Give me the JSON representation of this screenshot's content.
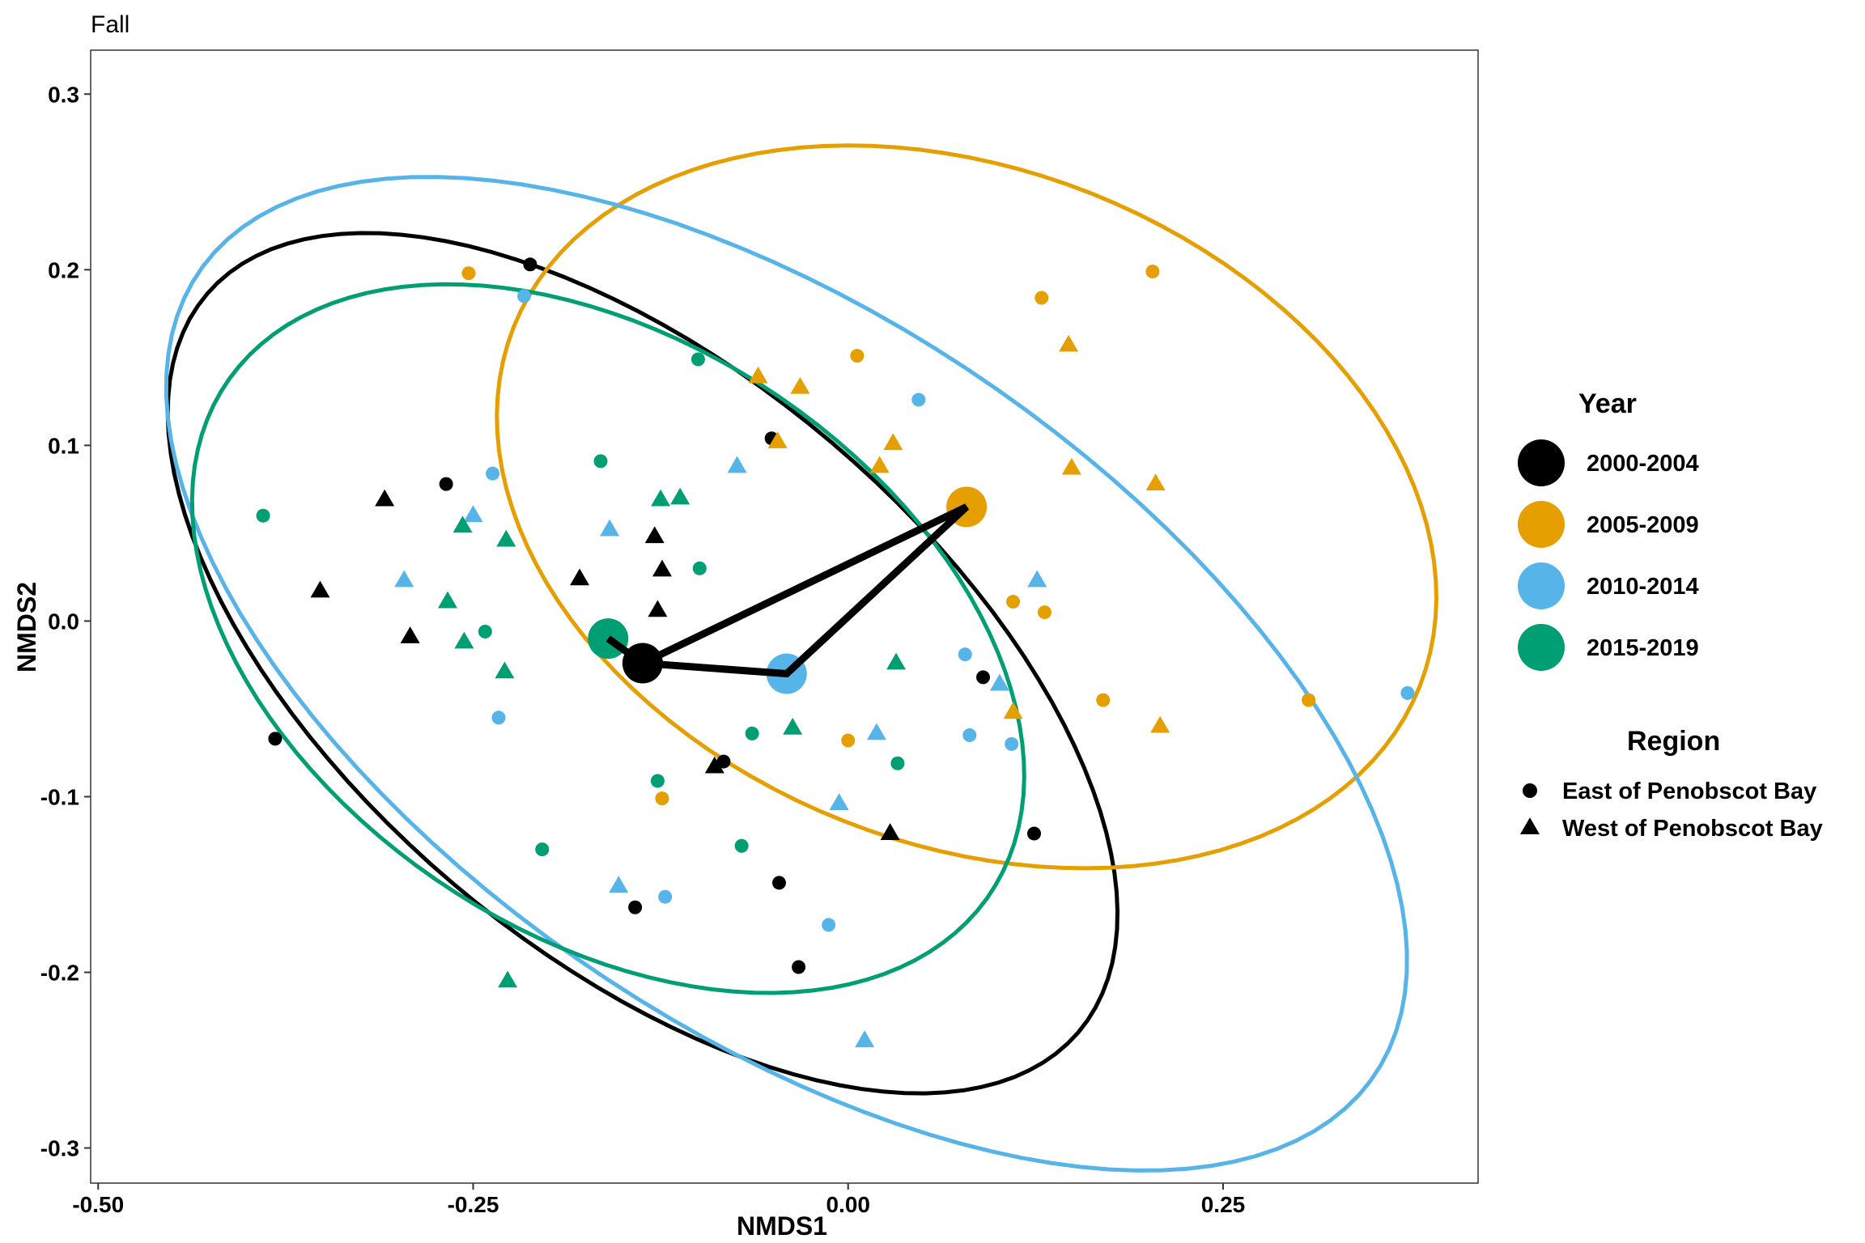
{
  "chart_data": {
    "type": "scatter",
    "title": "Fall",
    "xlabel": "NMDS1",
    "ylabel": "NMDS2",
    "xlim": [
      -0.505,
      0.42
    ],
    "ylim": [
      -0.32,
      0.325
    ],
    "xticks": [
      -0.5,
      -0.25,
      0.0,
      0.25
    ],
    "xtick_labels": [
      "-0.50",
      "-0.25",
      "0.00",
      "0.25"
    ],
    "yticks": [
      0.3,
      0.2,
      0.1,
      0.0,
      -0.1,
      -0.2,
      -0.3
    ],
    "ytick_labels": [
      "0.3",
      "0.2",
      "0.1",
      "0.0",
      "-0.1",
      "-0.2",
      "-0.3"
    ],
    "grid": false,
    "legend_position": "right",
    "year_legend": {
      "title": "Year",
      "items": [
        {
          "label": "2000-2004",
          "color": "#000000"
        },
        {
          "label": "2005-2009",
          "color": "#E69F00"
        },
        {
          "label": "2010-2014",
          "color": "#56B4E9"
        },
        {
          "label": "2015-2019",
          "color": "#009E73"
        }
      ]
    },
    "region_legend": {
      "title": "Region",
      "items": [
        {
          "label": "East of Penobscot Bay",
          "shape": "circle"
        },
        {
          "label": "West of Penobscot Bay",
          "shape": "triangle"
        }
      ]
    },
    "centroids": [
      {
        "group": "2000-2004",
        "x": -0.137,
        "y": -0.024
      },
      {
        "group": "2005-2009",
        "x": 0.079,
        "y": 0.065
      },
      {
        "group": "2010-2014",
        "x": -0.041,
        "y": -0.03
      },
      {
        "group": "2015-2019",
        "x": -0.16,
        "y": -0.01
      }
    ],
    "centroid_path": [
      {
        "x": -0.16,
        "y": -0.01
      },
      {
        "x": -0.137,
        "y": -0.024
      },
      {
        "x": -0.041,
        "y": -0.03
      },
      {
        "x": 0.079,
        "y": 0.065
      },
      {
        "x": -0.137,
        "y": -0.024
      }
    ],
    "ellipses": [
      {
        "group": "2000-2004",
        "cx": -0.137,
        "cy": -0.024,
        "a": 0.36,
        "b": 0.175,
        "angle_deg": -33
      },
      {
        "group": "2005-2009",
        "cx": 0.079,
        "cy": 0.065,
        "a": 0.32,
        "b": 0.195,
        "angle_deg": -15
      },
      {
        "group": "2010-2014",
        "cx": -0.041,
        "cy": -0.03,
        "a": 0.455,
        "b": 0.21,
        "angle_deg": -28
      },
      {
        "group": "2015-2019",
        "cx": -0.16,
        "cy": -0.01,
        "a": 0.295,
        "b": 0.175,
        "angle_deg": -25
      }
    ],
    "points": [
      {
        "group": "2000-2004",
        "region": "East",
        "x": -0.212,
        "y": 0.203
      },
      {
        "group": "2000-2004",
        "region": "East",
        "x": -0.268,
        "y": 0.078
      },
      {
        "group": "2000-2004",
        "region": "East",
        "x": -0.051,
        "y": 0.104
      },
      {
        "group": "2000-2004",
        "region": "East",
        "x": -0.382,
        "y": -0.067
      },
      {
        "group": "2000-2004",
        "region": "East",
        "x": -0.083,
        "y": -0.08
      },
      {
        "group": "2000-2004",
        "region": "East",
        "x": 0.09,
        "y": -0.032
      },
      {
        "group": "2000-2004",
        "region": "East",
        "x": 0.124,
        "y": -0.121
      },
      {
        "group": "2000-2004",
        "region": "East",
        "x": -0.046,
        "y": -0.149
      },
      {
        "group": "2000-2004",
        "region": "East",
        "x": -0.142,
        "y": -0.163
      },
      {
        "group": "2000-2004",
        "region": "East",
        "x": -0.033,
        "y": -0.197
      },
      {
        "group": "2000-2004",
        "region": "West",
        "x": -0.309,
        "y": 0.069
      },
      {
        "group": "2000-2004",
        "region": "West",
        "x": -0.352,
        "y": 0.017
      },
      {
        "group": "2000-2004",
        "region": "West",
        "x": -0.292,
        "y": -0.009
      },
      {
        "group": "2000-2004",
        "region": "West",
        "x": -0.179,
        "y": 0.024
      },
      {
        "group": "2000-2004",
        "region": "West",
        "x": -0.129,
        "y": 0.048
      },
      {
        "group": "2000-2004",
        "region": "West",
        "x": -0.124,
        "y": 0.029
      },
      {
        "group": "2000-2004",
        "region": "West",
        "x": -0.127,
        "y": 0.006
      },
      {
        "group": "2000-2004",
        "region": "West",
        "x": -0.089,
        "y": -0.083
      },
      {
        "group": "2000-2004",
        "region": "West",
        "x": 0.028,
        "y": -0.121
      },
      {
        "group": "2005-2009",
        "region": "East",
        "x": -0.253,
        "y": 0.198
      },
      {
        "group": "2005-2009",
        "region": "East",
        "x": 0.006,
        "y": 0.151
      },
      {
        "group": "2005-2009",
        "region": "East",
        "x": 0.129,
        "y": 0.184
      },
      {
        "group": "2005-2009",
        "region": "East",
        "x": 0.203,
        "y": 0.199
      },
      {
        "group": "2005-2009",
        "region": "East",
        "x": 0.11,
        "y": 0.011
      },
      {
        "group": "2005-2009",
        "region": "East",
        "x": 0.131,
        "y": 0.005
      },
      {
        "group": "2005-2009",
        "region": "East",
        "x": 0.17,
        "y": -0.045
      },
      {
        "group": "2005-2009",
        "region": "East",
        "x": 0.307,
        "y": -0.045
      },
      {
        "group": "2005-2009",
        "region": "East",
        "x": 0.0,
        "y": -0.068
      },
      {
        "group": "2005-2009",
        "region": "East",
        "x": -0.124,
        "y": -0.101
      },
      {
        "group": "2005-2009",
        "region": "West",
        "x": -0.06,
        "y": 0.139
      },
      {
        "group": "2005-2009",
        "region": "West",
        "x": -0.032,
        "y": 0.133
      },
      {
        "group": "2005-2009",
        "region": "West",
        "x": -0.047,
        "y": 0.102
      },
      {
        "group": "2005-2009",
        "region": "West",
        "x": 0.03,
        "y": 0.101
      },
      {
        "group": "2005-2009",
        "region": "West",
        "x": 0.021,
        "y": 0.088
      },
      {
        "group": "2005-2009",
        "region": "West",
        "x": 0.147,
        "y": 0.157
      },
      {
        "group": "2005-2009",
        "region": "West",
        "x": 0.149,
        "y": 0.087
      },
      {
        "group": "2005-2009",
        "region": "West",
        "x": 0.205,
        "y": 0.078
      },
      {
        "group": "2005-2009",
        "region": "West",
        "x": 0.11,
        "y": -0.052
      },
      {
        "group": "2005-2009",
        "region": "West",
        "x": 0.208,
        "y": -0.06
      },
      {
        "group": "2010-2014",
        "region": "East",
        "x": -0.216,
        "y": 0.185
      },
      {
        "group": "2010-2014",
        "region": "East",
        "x": 0.047,
        "y": 0.126
      },
      {
        "group": "2010-2014",
        "region": "East",
        "x": -0.237,
        "y": 0.084
      },
      {
        "group": "2010-2014",
        "region": "East",
        "x": 0.078,
        "y": -0.019
      },
      {
        "group": "2010-2014",
        "region": "East",
        "x": 0.081,
        "y": -0.065
      },
      {
        "group": "2010-2014",
        "region": "East",
        "x": 0.109,
        "y": -0.07
      },
      {
        "group": "2010-2014",
        "region": "East",
        "x": -0.233,
        "y": -0.055
      },
      {
        "group": "2010-2014",
        "region": "East",
        "x": -0.122,
        "y": -0.157
      },
      {
        "group": "2010-2014",
        "region": "East",
        "x": -0.013,
        "y": -0.173
      },
      {
        "group": "2010-2014",
        "region": "East",
        "x": 0.373,
        "y": -0.041
      },
      {
        "group": "2010-2014",
        "region": "West",
        "x": -0.074,
        "y": 0.088
      },
      {
        "group": "2010-2014",
        "region": "West",
        "x": -0.25,
        "y": 0.06
      },
      {
        "group": "2010-2014",
        "region": "West",
        "x": -0.159,
        "y": 0.052
      },
      {
        "group": "2010-2014",
        "region": "West",
        "x": -0.296,
        "y": 0.023
      },
      {
        "group": "2010-2014",
        "region": "West",
        "x": 0.126,
        "y": 0.023
      },
      {
        "group": "2010-2014",
        "region": "West",
        "x": 0.101,
        "y": -0.036
      },
      {
        "group": "2010-2014",
        "region": "West",
        "x": 0.019,
        "y": -0.064
      },
      {
        "group": "2010-2014",
        "region": "West",
        "x": -0.006,
        "y": -0.104
      },
      {
        "group": "2010-2014",
        "region": "West",
        "x": -0.153,
        "y": -0.151
      },
      {
        "group": "2010-2014",
        "region": "West",
        "x": 0.011,
        "y": -0.239
      },
      {
        "group": "2015-2019",
        "region": "East",
        "x": -0.39,
        "y": 0.06
      },
      {
        "group": "2015-2019",
        "region": "East",
        "x": -0.1,
        "y": 0.149
      },
      {
        "group": "2015-2019",
        "region": "East",
        "x": -0.165,
        "y": 0.091
      },
      {
        "group": "2015-2019",
        "region": "East",
        "x": -0.099,
        "y": 0.03
      },
      {
        "group": "2015-2019",
        "region": "East",
        "x": -0.242,
        "y": -0.006
      },
      {
        "group": "2015-2019",
        "region": "East",
        "x": -0.064,
        "y": -0.064
      },
      {
        "group": "2015-2019",
        "region": "East",
        "x": 0.033,
        "y": -0.081
      },
      {
        "group": "2015-2019",
        "region": "East",
        "x": -0.127,
        "y": -0.091
      },
      {
        "group": "2015-2019",
        "region": "East",
        "x": -0.071,
        "y": -0.128
      },
      {
        "group": "2015-2019",
        "region": "East",
        "x": -0.204,
        "y": -0.13
      },
      {
        "group": "2015-2019",
        "region": "West",
        "x": -0.125,
        "y": 0.069
      },
      {
        "group": "2015-2019",
        "region": "West",
        "x": -0.112,
        "y": 0.07
      },
      {
        "group": "2015-2019",
        "region": "West",
        "x": -0.257,
        "y": 0.054
      },
      {
        "group": "2015-2019",
        "region": "West",
        "x": -0.228,
        "y": 0.046
      },
      {
        "group": "2015-2019",
        "region": "West",
        "x": -0.267,
        "y": 0.011
      },
      {
        "group": "2015-2019",
        "region": "West",
        "x": -0.256,
        "y": -0.012
      },
      {
        "group": "2015-2019",
        "region": "West",
        "x": -0.229,
        "y": -0.029
      },
      {
        "group": "2015-2019",
        "region": "West",
        "x": 0.032,
        "y": -0.024
      },
      {
        "group": "2015-2019",
        "region": "West",
        "x": -0.037,
        "y": -0.061
      },
      {
        "group": "2015-2019",
        "region": "West",
        "x": -0.227,
        "y": -0.205
      }
    ]
  }
}
